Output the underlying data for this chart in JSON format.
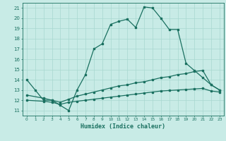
{
  "xlabel": "Humidex (Indice chaleur)",
  "bg_color": "#c8ebe6",
  "grid_color": "#a8d8d0",
  "line_color": "#1a7060",
  "xlim": [
    -0.5,
    23.5
  ],
  "ylim": [
    10.5,
    21.5
  ],
  "yticks": [
    11,
    12,
    13,
    14,
    15,
    16,
    17,
    18,
    19,
    20,
    21
  ],
  "xticks": [
    0,
    1,
    2,
    3,
    4,
    5,
    6,
    7,
    8,
    9,
    10,
    11,
    12,
    13,
    14,
    15,
    16,
    17,
    18,
    19,
    20,
    21,
    22,
    23
  ],
  "line1_x": [
    0,
    1,
    2,
    3,
    4,
    5,
    6,
    7,
    8,
    9,
    10,
    11,
    12,
    13,
    14,
    15,
    16,
    17,
    18,
    19,
    20,
    21,
    22,
    23
  ],
  "line1_y": [
    14,
    13,
    12,
    12,
    11.5,
    11,
    13,
    14.5,
    17,
    17.5,
    19.4,
    19.7,
    19.9,
    19.1,
    21.1,
    21.0,
    20.0,
    18.9,
    18.9,
    15.6,
    14.9,
    14.2,
    13.5,
    13.0
  ],
  "line2_x": [
    0,
    2,
    3,
    4,
    5,
    6,
    7,
    8,
    9,
    10,
    11,
    12,
    13,
    14,
    15,
    16,
    17,
    18,
    19,
    20,
    21,
    22,
    23
  ],
  "line2_y": [
    12.5,
    12.2,
    12.0,
    11.8,
    12.1,
    12.4,
    12.6,
    12.8,
    13.0,
    13.2,
    13.4,
    13.5,
    13.7,
    13.8,
    14.0,
    14.2,
    14.3,
    14.5,
    14.6,
    14.8,
    14.9,
    13.5,
    13.0
  ],
  "line3_x": [
    0,
    2,
    3,
    4,
    5,
    6,
    7,
    8,
    9,
    10,
    11,
    12,
    13,
    14,
    15,
    16,
    17,
    18,
    19,
    20,
    21,
    22,
    23
  ],
  "line3_y": [
    12.0,
    11.9,
    11.8,
    11.6,
    11.8,
    11.9,
    12.0,
    12.1,
    12.2,
    12.3,
    12.4,
    12.5,
    12.6,
    12.7,
    12.8,
    12.9,
    12.95,
    13.0,
    13.05,
    13.1,
    13.15,
    12.9,
    12.8
  ]
}
